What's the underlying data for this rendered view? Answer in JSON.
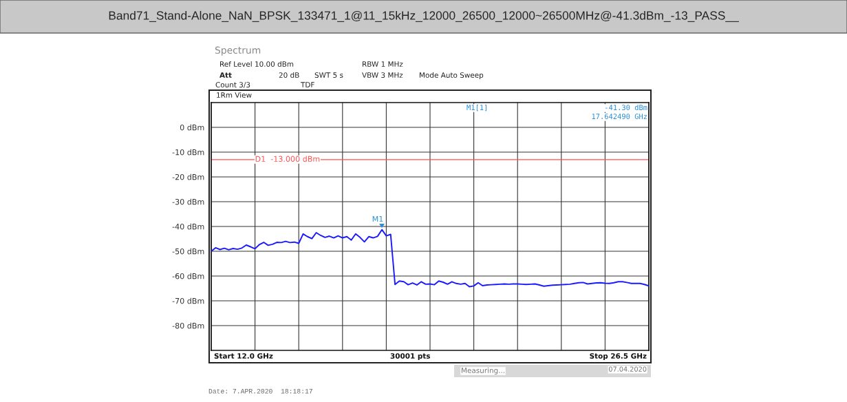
{
  "chart_data": {
    "type": "line",
    "title": "Band71_Stand-Alone_NaN_BPSK_133471_1@11_15kHz_12000_26500_12000~26500MHz@-41.3dBm_-13_PASS__",
    "categories": [
      null,
      null,
      null,
      null,
      null,
      null,
      null,
      null,
      null,
      null,
      null,
      null,
      null,
      null,
      null,
      null,
      null,
      null,
      null,
      null,
      null,
      null,
      null,
      null,
      null,
      null,
      null,
      null,
      null,
      null,
      null,
      null,
      null,
      null,
      null,
      null,
      null,
      null,
      null,
      null,
      null,
      null,
      null,
      null,
      null,
      null,
      null,
      null,
      null,
      null,
      null,
      null,
      null,
      null,
      null,
      null,
      null,
      null,
      null,
      null,
      null,
      null,
      null,
      null,
      null,
      null,
      null,
      null,
      null,
      null,
      null,
      null,
      null,
      null,
      null,
      null,
      null,
      null,
      null,
      null,
      null,
      null,
      null,
      null,
      null,
      null,
      null,
      null,
      null,
      null,
      null,
      null,
      null,
      null,
      null,
      null,
      null,
      null,
      null,
      null,
      null
    ],
    "series": [
      {
        "color": "#1a1aff",
        "values": [
          -50.0,
          -48.6,
          -49.3,
          -48.8,
          -49.4,
          -48.9,
          -49.2,
          -48.7,
          -47.5,
          -48.2,
          -49.0,
          -47.3,
          -46.4,
          -47.6,
          -47.2,
          -46.4,
          -46.5,
          -46.0,
          -46.5,
          -46.3,
          -46.8,
          -43.0,
          -44.1,
          -44.9,
          -42.5,
          -43.6,
          -44.4,
          -43.9,
          -44.6,
          -43.8,
          -44.6,
          -44.1,
          -45.5,
          -43.0,
          -44.4,
          -46.2,
          -44.1,
          -44.6,
          -44.0,
          -41.3,
          -43.8,
          -43.2,
          -63.4,
          -62.0,
          -62.3,
          -63.5,
          -62.8,
          -63.6,
          -62.3,
          -63.3,
          -63.2,
          -63.5,
          -62.0,
          -62.5,
          -63.3,
          -62.3,
          -63.0,
          -63.3,
          -63.0,
          -64.3,
          -64.0,
          -62.7,
          -63.9,
          -63.6,
          -63.5,
          -63.4,
          -63.3,
          -63.2,
          -63.3,
          -63.2,
          -63.2,
          -63.3,
          -63.4,
          -63.3,
          -63.2,
          -63.6,
          -64.1,
          -63.9,
          -63.7,
          -63.6,
          -63.5,
          -63.4,
          -63.3,
          -63.0,
          -62.7,
          -62.6,
          -63.2,
          -63.0,
          -62.8,
          -62.7,
          -62.9,
          -63.0,
          -62.7,
          -62.3,
          -62.3,
          -62.6,
          -63.0,
          -63.0,
          -63.0,
          -63.4,
          -64.0
        ]
      }
    ],
    "ylim": [
      -90,
      10
    ],
    "yticks": [
      {
        "value": 0,
        "label": "0 dBm"
      },
      {
        "value": -10,
        "label": "-10 dBm"
      },
      {
        "value": -20,
        "label": "-20 dBm"
      },
      {
        "value": -30,
        "label": "-30 dBm"
      },
      {
        "value": -40,
        "label": "-40 dBm"
      },
      {
        "value": -50,
        "label": "-50 dBm"
      },
      {
        "value": -60,
        "label": "-60 dBm"
      },
      {
        "value": -70,
        "label": "-70 dBm"
      },
      {
        "value": -80,
        "label": "-80 dBm"
      }
    ],
    "grid": true,
    "legend": false,
    "ref_lines": [
      {
        "axis": "y",
        "value": -13,
        "label": "D1  -13.000 dBm",
        "color": "#ff5050"
      }
    ],
    "annotations": [
      "Spectrum",
      "Ref Level 10.00 dBm",
      "Att",
      "20 dB",
      "SWT 5 s",
      "RBW 1 MHz",
      "VBW 3 MHz",
      "Mode Auto Sweep",
      "Count 3/3",
      "TDF",
      "1Rm View",
      "M1[1]",
      "-41.30 dBm",
      "17.642490 GHz",
      "Start 12.0 GHz",
      "30001 pts",
      "Stop 26.5 GHz",
      "Measuring...",
      "07.04.2020",
      "Date: 7.APR.2020  18:18:17",
      "M1"
    ]
  }
}
